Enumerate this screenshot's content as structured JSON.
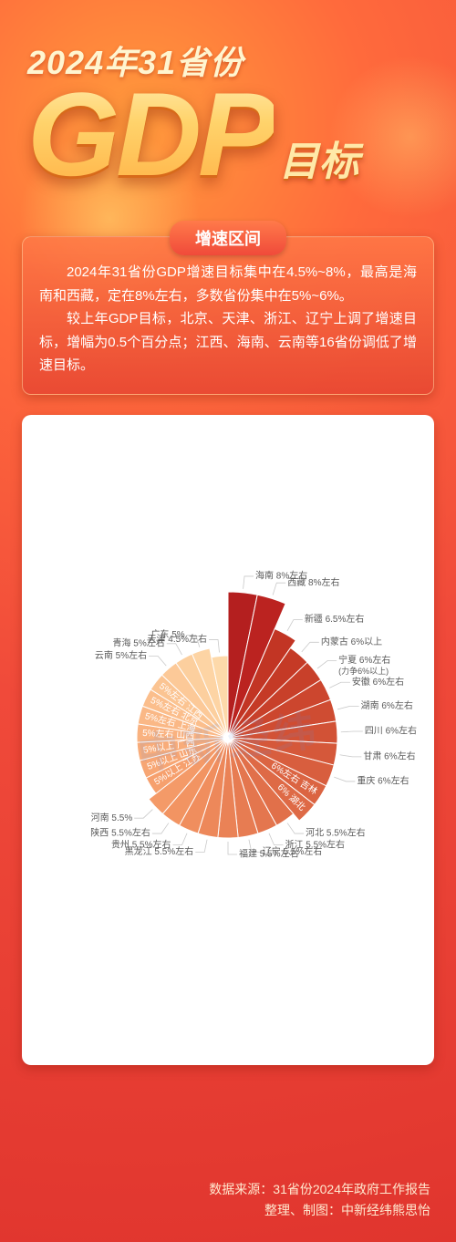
{
  "header": {
    "line1": "2024年31省份",
    "gdp": "GDP",
    "sub": "目标"
  },
  "section": {
    "tab": "增速区间",
    "p1": "2024年31省份GDP增速目标集中在4.5%~8%，最高是海南和西藏，定在8%左右，多数省份集中在5%~6%。",
    "p2": "较上年GDP目标，北京、天津、浙江、辽宁上调了增速目标，增幅为0.5个百分点；江西、海南、云南等16省份调低了增速目标。"
  },
  "chart": {
    "type": "polar-bar",
    "background": "#ffffff",
    "center_offset_deg": 0,
    "label_fontsize": 10,
    "label_color": "#5a5a5a",
    "watermark": "中新经纬",
    "slices": [
      {
        "name": "海南",
        "target": "8%左右",
        "radius": 160,
        "color": "#b41f1f"
      },
      {
        "name": "西藏",
        "target": "8%左右",
        "radius": 160,
        "color": "#bb2320"
      },
      {
        "name": "新疆",
        "target": "6.5%左右",
        "radius": 130,
        "color": "#c23524"
      },
      {
        "name": "内蒙古",
        "target": "6%以上",
        "radius": 120,
        "color": "#c53a26"
      },
      {
        "name": "宁夏",
        "target": "6%左右",
        "extra": "(力争6%以上)",
        "radius": 120,
        "color": "#c8402a"
      },
      {
        "name": "安徽",
        "target": "6%左右",
        "radius": 120,
        "color": "#cc462e"
      },
      {
        "name": "湖南",
        "target": "6%左右",
        "radius": 120,
        "color": "#cf4c32"
      },
      {
        "name": "四川",
        "target": "6%左右",
        "radius": 120,
        "color": "#d25236"
      },
      {
        "name": "甘肃",
        "target": "6%左右",
        "radius": 120,
        "color": "#d5583a"
      },
      {
        "name": "重庆",
        "target": "6%左右",
        "radius": 120,
        "color": "#d85e3e"
      },
      {
        "name": "吉林",
        "target": "6%左右",
        "radius": 120,
        "color": "#db6442"
      },
      {
        "name": "湖北",
        "target": "6%",
        "radius": 120,
        "color": "#de6a46"
      },
      {
        "name": "河北",
        "target": "5.5%左右",
        "radius": 110,
        "color": "#e1704a"
      },
      {
        "name": "浙江",
        "target": "5.5%左右",
        "radius": 110,
        "color": "#e4764e"
      },
      {
        "name": "辽宁",
        "target": "5.5%左右",
        "radius": 110,
        "color": "#e77c52"
      },
      {
        "name": "福建",
        "target": "5.5%左右",
        "radius": 110,
        "color": "#ea8256"
      },
      {
        "name": "黑龙江",
        "target": "5.5%左右",
        "radius": 110,
        "color": "#ed885a"
      },
      {
        "name": "贵州",
        "target": "5.5%左右",
        "radius": 110,
        "color": "#f08e5e"
      },
      {
        "name": "陕西",
        "target": "5.5%左右",
        "radius": 110,
        "color": "#f29462"
      },
      {
        "name": "河南",
        "target": "5.5%",
        "radius": 110,
        "color": "#f49a68"
      },
      {
        "name": "江苏",
        "target": "5%以上",
        "radius": 100,
        "color": "#f6a06e"
      },
      {
        "name": "山东",
        "target": "5%以上",
        "radius": 100,
        "color": "#f7a674"
      },
      {
        "name": "广西",
        "target": "5%以上",
        "radius": 100,
        "color": "#f8ac7a"
      },
      {
        "name": "山西",
        "target": "5%左右",
        "radius": 100,
        "color": "#f9b280"
      },
      {
        "name": "上海",
        "target": "5%左右",
        "radius": 100,
        "color": "#fab886"
      },
      {
        "name": "北京",
        "target": "5%左右",
        "radius": 100,
        "color": "#fbbe8c"
      },
      {
        "name": "江西",
        "target": "5%左右",
        "radius": 100,
        "color": "#fbc492"
      },
      {
        "name": "云南",
        "target": "5%左右",
        "radius": 100,
        "color": "#fcc998"
      },
      {
        "name": "青海",
        "target": "5%左右",
        "radius": 100,
        "color": "#fccf9e"
      },
      {
        "name": "广东",
        "target": "5%",
        "radius": 100,
        "color": "#fdd4a4"
      },
      {
        "name": "天津",
        "target": "4.5%左右",
        "radius": 90,
        "color": "#fdd9aa"
      }
    ]
  },
  "footer": {
    "source_label": "数据来源：",
    "source": "31省份2024年政府工作报告",
    "credit_label": "整理、制图：",
    "credit": "中新经纬熊思怡"
  }
}
